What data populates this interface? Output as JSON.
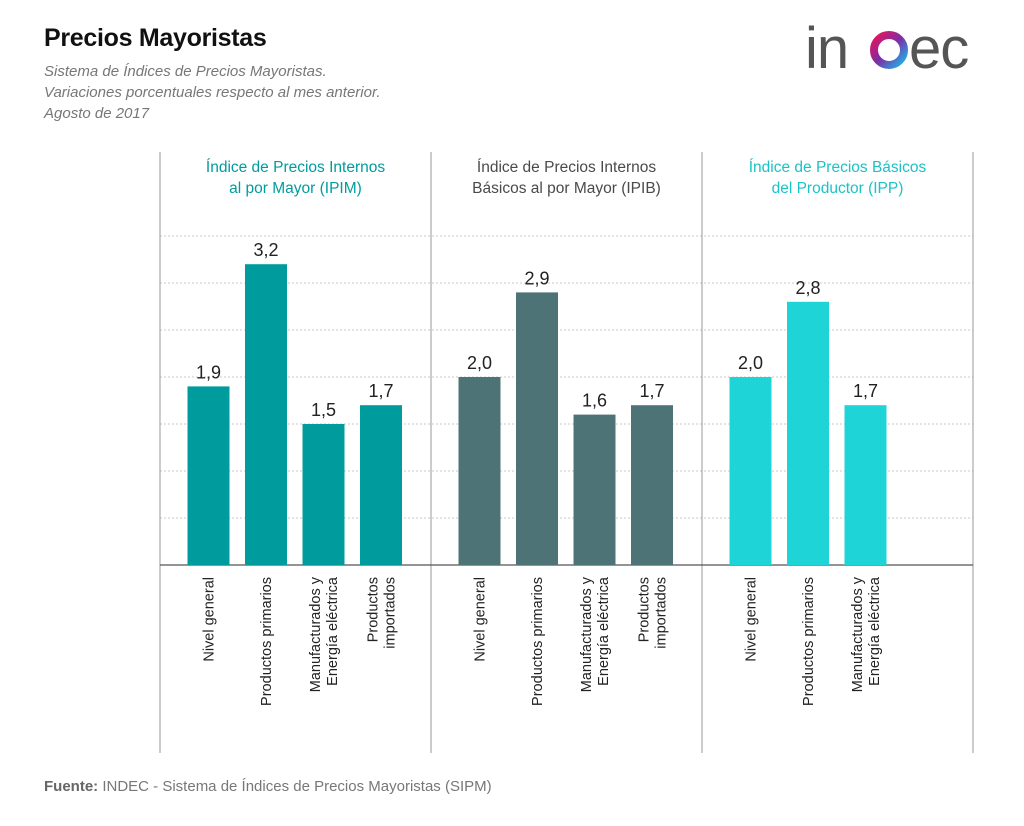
{
  "header": {
    "title": "Precios Mayoristas",
    "subtitle_lines": [
      "Sistema de Índices de Precios Mayoristas.",
      "Variaciones porcentuales respecto al mes anterior.",
      "Agosto de 2017"
    ],
    "logo_text": "indec"
  },
  "footer": {
    "source_label": "Fuente:",
    "source_text": "INDEC - Sistema de Índices de Precios Mayoristas (SIPM)"
  },
  "colors": {
    "ipim": "#009C9D",
    "ipib": "#4E7377",
    "ipp": "#1ED4D6",
    "gridline": "#c8c8c8",
    "axis": "#555555"
  },
  "chart_data": {
    "type": "bar",
    "ylim": [
      0,
      3.5
    ],
    "grid": true,
    "panels": [
      {
        "title_lines": [
          "Índice de Precios Internos",
          "al por Mayor (IPIM)"
        ],
        "color": "#009C9D",
        "title_color": "#009C9D",
        "categories": [
          [
            "Nivel general"
          ],
          [
            "Productos primarios"
          ],
          [
            "Manufacturados y",
            "Energía eléctrica"
          ],
          [
            "Productos",
            "importados"
          ]
        ],
        "values": [
          1.9,
          3.2,
          1.5,
          1.7
        ],
        "value_labels": [
          "1,9",
          "3,2",
          "1,5",
          "1,7"
        ]
      },
      {
        "title_lines": [
          "Índice de Precios Internos",
          "Básicos al por Mayor (IPIB)"
        ],
        "color": "#4E7377",
        "title_color": "#4a4a4a",
        "categories": [
          [
            "Nivel general"
          ],
          [
            "Productos primarios"
          ],
          [
            "Manufacturados y",
            "Energía eléctrica"
          ],
          [
            "Productos",
            "importados"
          ]
        ],
        "values": [
          2.0,
          2.9,
          1.6,
          1.7
        ],
        "value_labels": [
          "2,0",
          "2,9",
          "1,6",
          "1,7"
        ]
      },
      {
        "title_lines": [
          "Índice de Precios Básicos",
          "del Productor (IPP)"
        ],
        "color": "#1ED4D6",
        "title_color": "#1BC3C6",
        "categories": [
          [
            "Nivel general"
          ],
          [
            "Productos primarios"
          ],
          [
            "Manufacturados y",
            "Energía eléctrica"
          ]
        ],
        "values": [
          2.0,
          2.8,
          1.7
        ],
        "value_labels": [
          "2,0",
          "2,8",
          "1,7"
        ]
      }
    ]
  }
}
